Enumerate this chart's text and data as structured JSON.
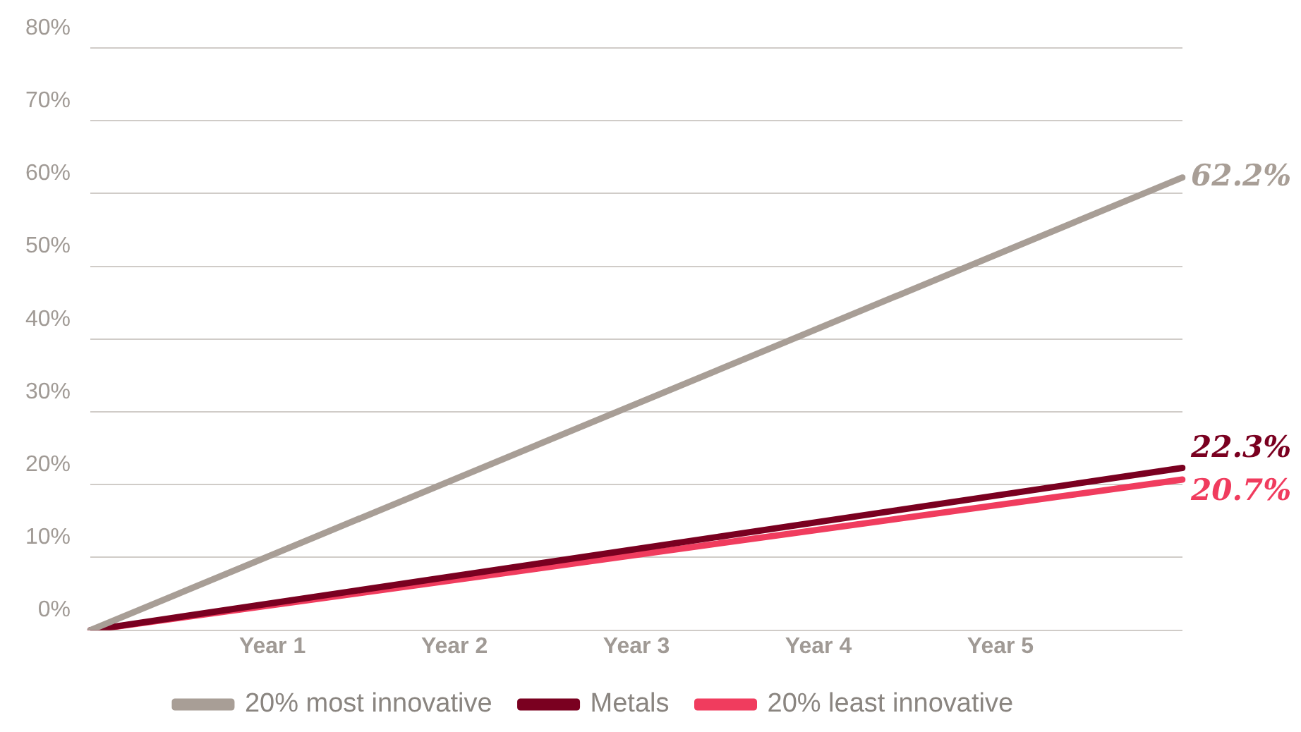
{
  "chart_data": {
    "type": "line",
    "categories": [
      null,
      "Year 1",
      "Year 2",
      "Year 3",
      "Year 4",
      "Year 5",
      null
    ],
    "ylim": [
      0,
      80
    ],
    "yticks": [
      {
        "value": 0,
        "label": "0%"
      },
      {
        "value": 10,
        "label": "10%"
      },
      {
        "value": 20,
        "label": "20%"
      },
      {
        "value": 30,
        "label": "30%"
      },
      {
        "value": 40,
        "label": "40%"
      },
      {
        "value": 50,
        "label": "50%"
      },
      {
        "value": 60,
        "label": "60%"
      },
      {
        "value": 70,
        "label": "70%"
      },
      {
        "value": 80,
        "label": "80%"
      }
    ],
    "grid": "y",
    "legend": "bottom",
    "marker": "none",
    "series": [
      {
        "name": "20% most innovative",
        "color": "#a89e96",
        "values": [
          0,
          null,
          null,
          null,
          null,
          null,
          62.2
        ],
        "value_labels": [
          null,
          null,
          null,
          null,
          null,
          null,
          "62.2%"
        ]
      },
      {
        "name": "Metals",
        "color": "#7a0020",
        "values": [
          0,
          null,
          null,
          null,
          null,
          null,
          22.3
        ],
        "value_labels": [
          null,
          null,
          null,
          null,
          null,
          null,
          "22.3%"
        ]
      },
      {
        "name": "20% least innovative",
        "color": "#f03c5e",
        "values": [
          0,
          null,
          null,
          null,
          null,
          null,
          20.7
        ],
        "value_labels": [
          null,
          null,
          null,
          null,
          null,
          null,
          "20.7%"
        ]
      }
    ]
  }
}
